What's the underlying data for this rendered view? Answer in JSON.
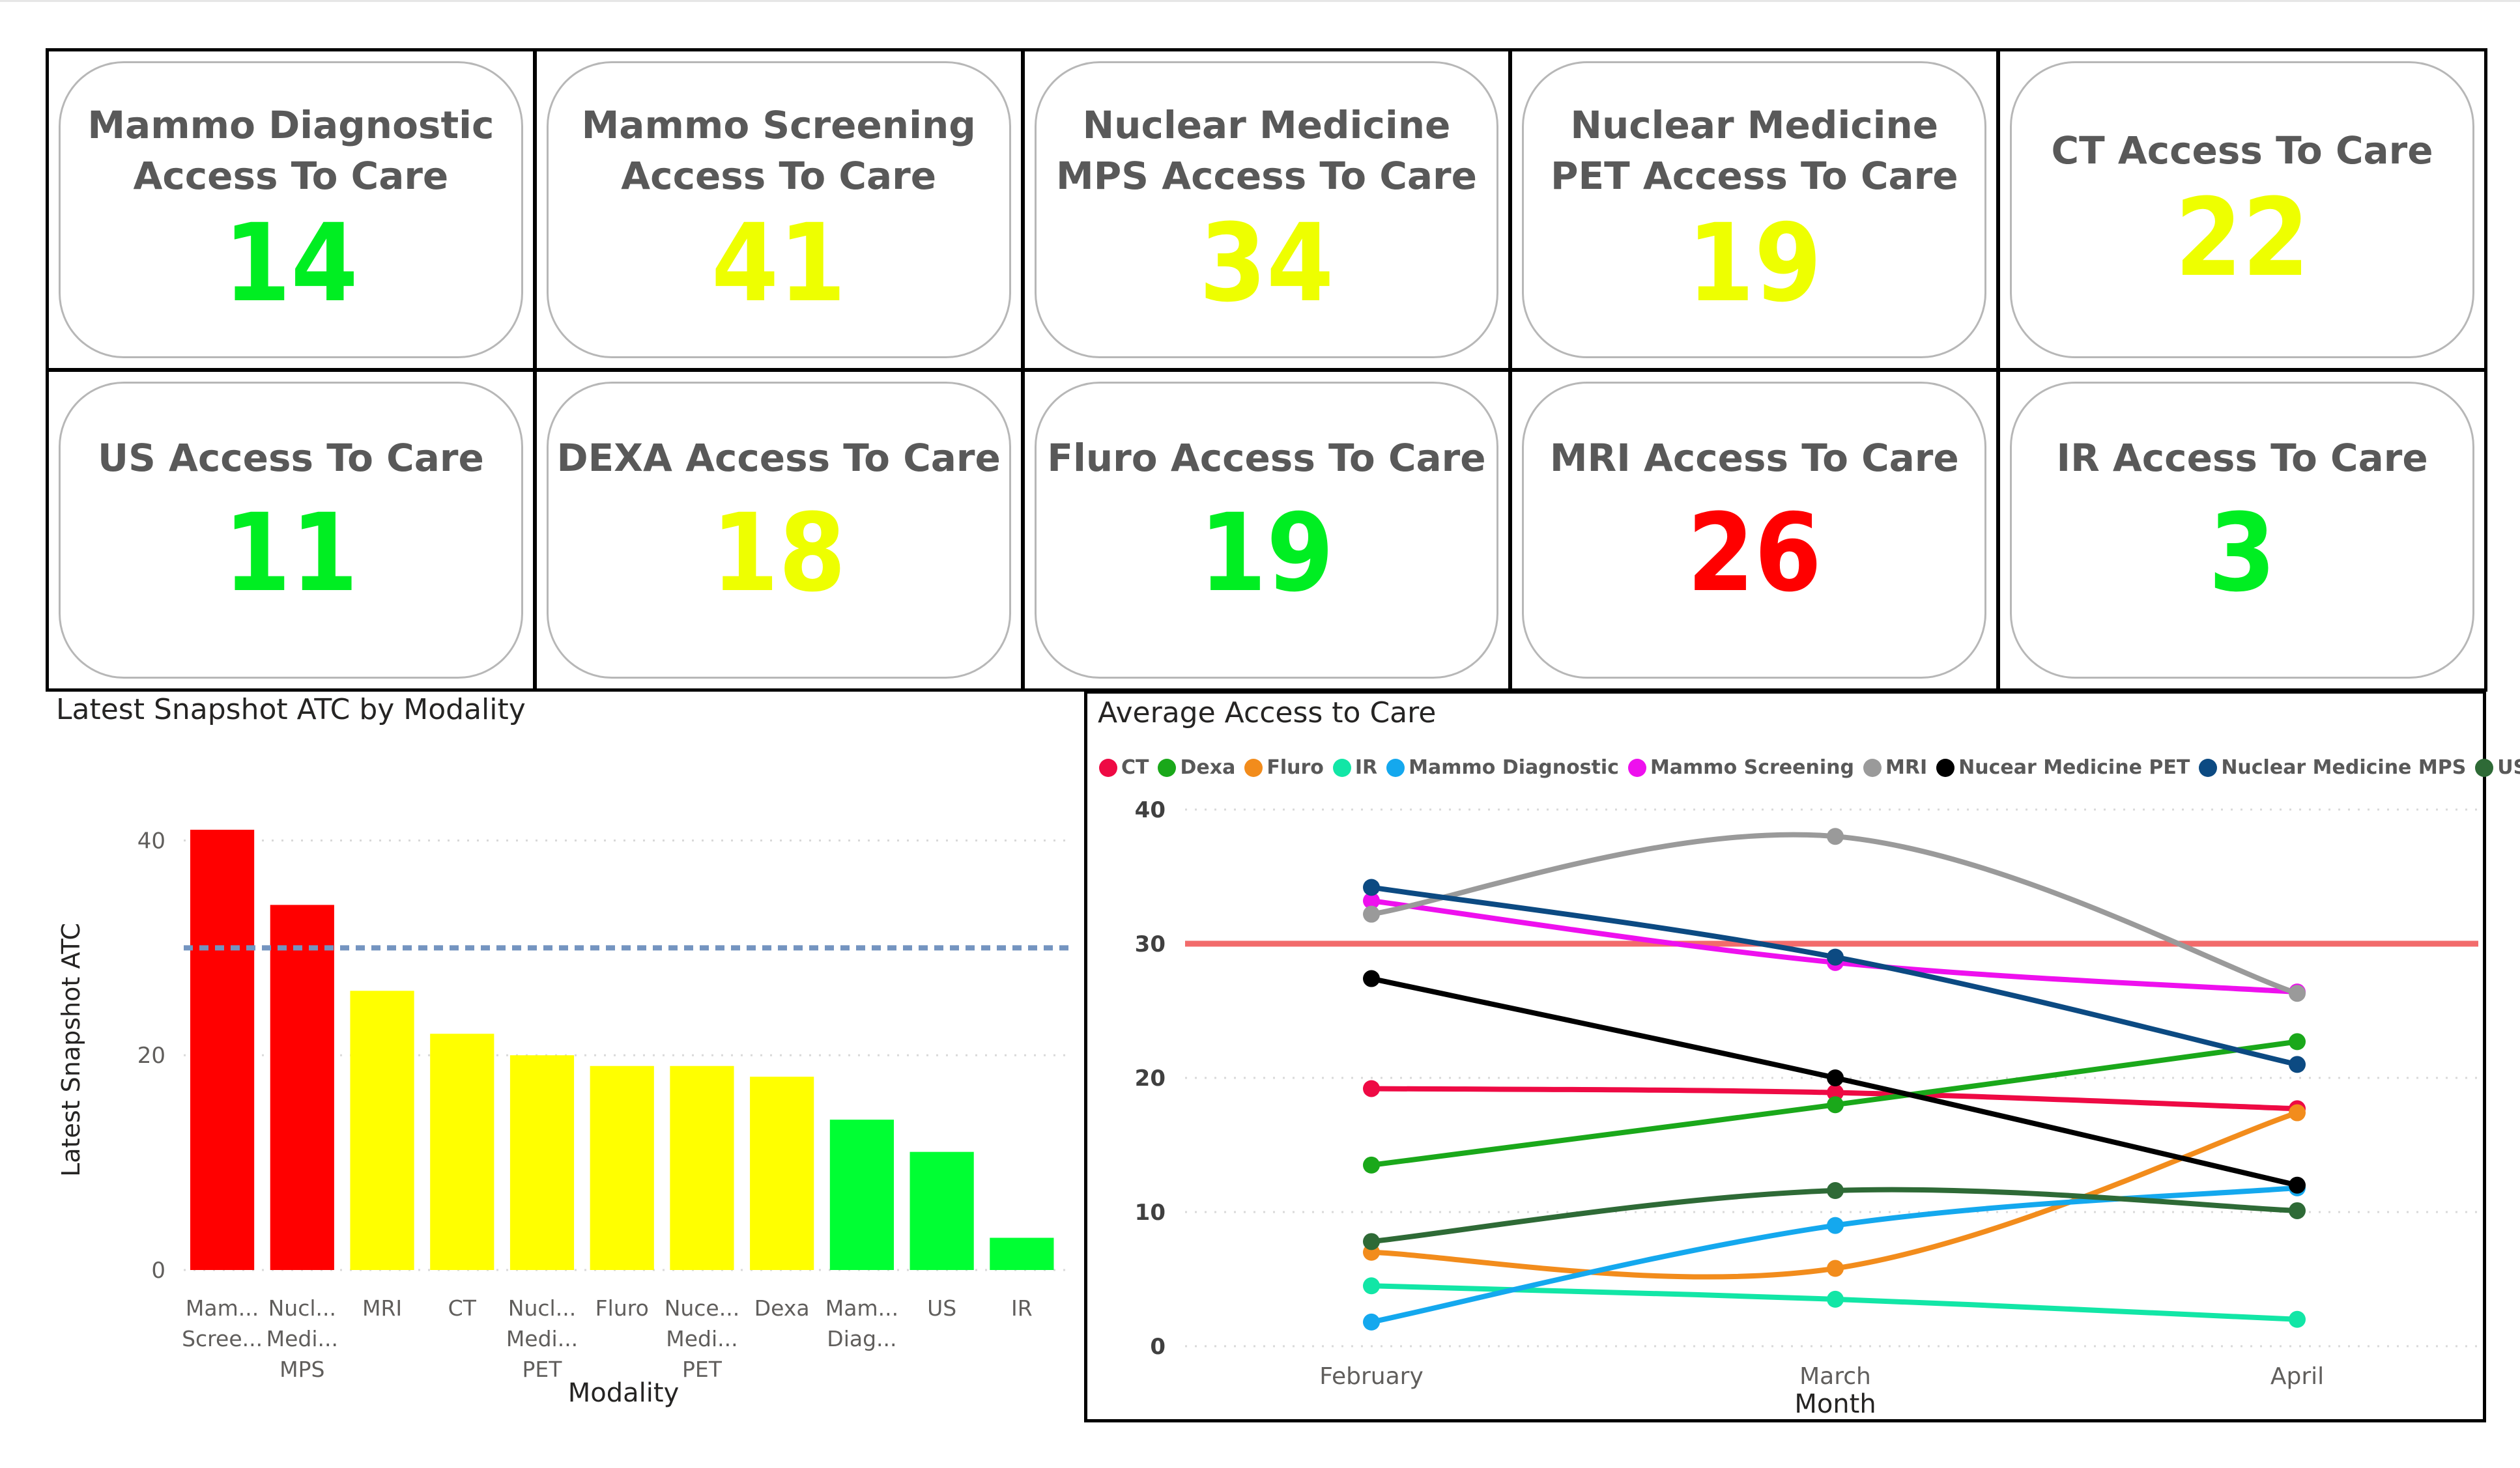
{
  "kpis": [
    {
      "title": "Mammo Diagnostic\nAccess To Care",
      "value": "14",
      "color": "#00ee22"
    },
    {
      "title": "Mammo Screening\nAccess To Care",
      "value": "41",
      "color": "#eeff00"
    },
    {
      "title": "Nuclear Medicine\nMPS Access To Care",
      "value": "34",
      "color": "#eeff00"
    },
    {
      "title": "Nuclear Medicine\nPET Access To Care",
      "value": "19",
      "color": "#eeff00"
    },
    {
      "title": "CT Access To Care",
      "value": "22",
      "color": "#eeff00"
    },
    {
      "title": "US Access To Care",
      "value": "11",
      "color": "#00ee22"
    },
    {
      "title": "DEXA Access To Care",
      "value": "18",
      "color": "#eeff00"
    },
    {
      "title": "Fluro Access To Care",
      "value": "19",
      "color": "#00ee22"
    },
    {
      "title": "MRI Access To Care",
      "value": "26",
      "color": "#ff0000"
    },
    {
      "title": "IR Access To Care",
      "value": "3",
      "color": "#00ee22"
    }
  ],
  "chart_data": [
    {
      "type": "bar",
      "title": "Latest Snapshot ATC by Modality",
      "xlabel": "Modality",
      "ylabel": "Latest Snapshot ATC",
      "ylim": [
        0,
        41
      ],
      "yticks": [
        0,
        20,
        40
      ],
      "reference_line": 30,
      "reference_line_color": "#7494c0",
      "grid": true,
      "categories": [
        {
          "label": [
            "Mam...",
            "Scree..."
          ],
          "value": 41,
          "color": "#ff0000"
        },
        {
          "label": [
            "Nucl...",
            "Medi...",
            "MPS"
          ],
          "value": 34,
          "color": "#ff0000"
        },
        {
          "label": [
            "MRI"
          ],
          "value": 26,
          "color": "#ffff00"
        },
        {
          "label": [
            "CT"
          ],
          "value": 22,
          "color": "#ffff00"
        },
        {
          "label": [
            "Nucl...",
            "Medi...",
            "PET"
          ],
          "value": 20,
          "color": "#ffff00"
        },
        {
          "label": [
            "Fluro"
          ],
          "value": 19,
          "color": "#ffff00"
        },
        {
          "label": [
            "Nuce...",
            "Medi...",
            "PET"
          ],
          "value": 19,
          "color": "#ffff00"
        },
        {
          "label": [
            "Dexa"
          ],
          "value": 18,
          "color": "#ffff00"
        },
        {
          "label": [
            "Mam...",
            "Diag..."
          ],
          "value": 14,
          "color": "#00ff33"
        },
        {
          "label": [
            "US"
          ],
          "value": 11,
          "color": "#00ff33"
        },
        {
          "label": [
            "IR"
          ],
          "value": 3,
          "color": "#00ff33"
        }
      ]
    },
    {
      "type": "line",
      "title": "Average Access to Care",
      "xlabel": "Month",
      "ylabel": "",
      "ylim": [
        0,
        40
      ],
      "yticks": [
        0,
        10,
        20,
        30,
        40
      ],
      "reference_line": 30,
      "reference_line_color": "#f26b6b",
      "legend_position": "top-left",
      "grid": true,
      "x": [
        "February",
        "March",
        "April"
      ],
      "series": [
        {
          "name": "CT",
          "color": "#ee0a44",
          "values": [
            19.2,
            18.9,
            17.7
          ]
        },
        {
          "name": "Dexa",
          "color": "#1aa81a",
          "values": [
            13.5,
            18.0,
            22.7
          ]
        },
        {
          "name": "Fluro",
          "color": "#f28c1c",
          "values": [
            7.0,
            5.8,
            17.4
          ]
        },
        {
          "name": "IR",
          "color": "#12e6a6",
          "values": [
            4.5,
            3.5,
            2.0
          ]
        },
        {
          "name": "Mammo Diagnostic",
          "color": "#14a8ee",
          "values": [
            1.8,
            9.0,
            11.8
          ]
        },
        {
          "name": "Mammo Screening",
          "color": "#ee10ee",
          "values": [
            33.2,
            28.6,
            26.4
          ]
        },
        {
          "name": "MRI",
          "color": "#9a9a9a",
          "values": [
            32.2,
            38.0,
            26.3
          ]
        },
        {
          "name": "Nucear Medicine PET",
          "color": "#000000",
          "values": [
            27.4,
            20.0,
            12.0
          ]
        },
        {
          "name": "Nuclear Medicine MPS",
          "color": "#0c4a82",
          "values": [
            34.2,
            29.0,
            21.0
          ]
        },
        {
          "name": "US",
          "color": "#2e6a36",
          "values": [
            7.8,
            11.6,
            10.1
          ]
        }
      ]
    }
  ]
}
